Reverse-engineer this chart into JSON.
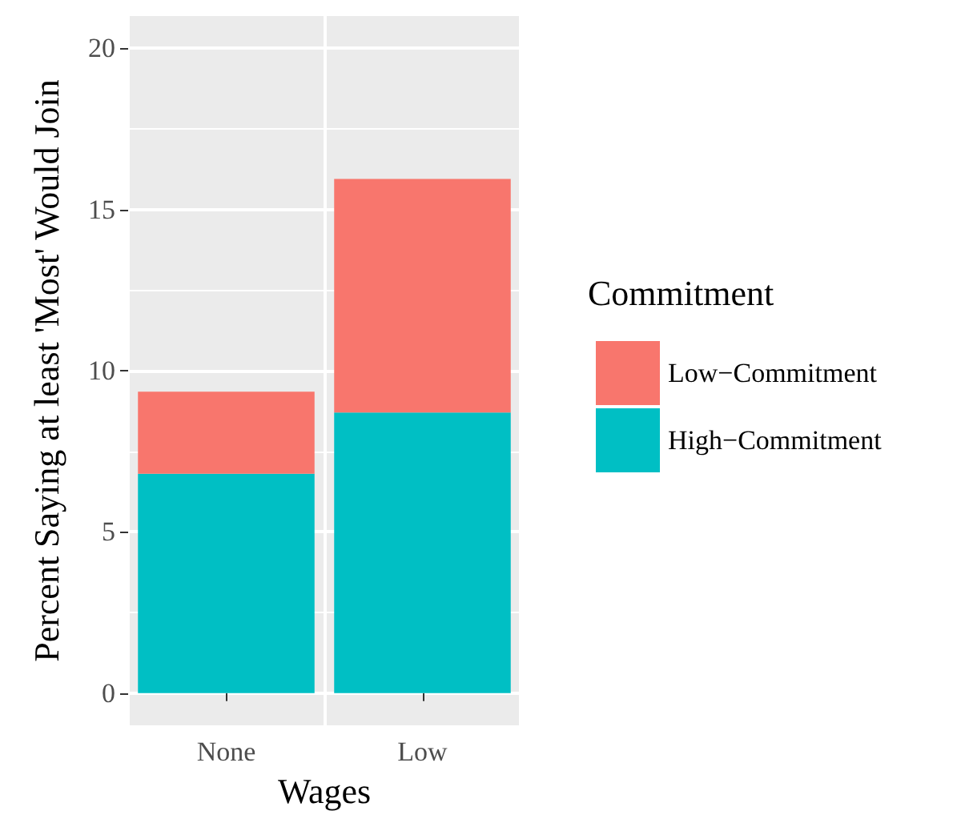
{
  "chart_data": {
    "type": "bar",
    "xlabel": "Wages",
    "ylabel": "Percent Saying at least 'Most' Would Join",
    "legend_title": "Commitment",
    "categories": [
      "None",
      "Low"
    ],
    "stacked": true,
    "series": [
      {
        "name": "High−Commitment",
        "color": "#00bfc4",
        "values": [
          6.8,
          8.7
        ]
      },
      {
        "name": "Low−Commitment",
        "color": "#f8766d",
        "values": [
          2.55,
          7.25
        ]
      }
    ],
    "ylim": [
      -1,
      21
    ],
    "yticks": [
      0,
      5,
      10,
      15,
      20
    ],
    "grid": true,
    "legend": "right"
  }
}
